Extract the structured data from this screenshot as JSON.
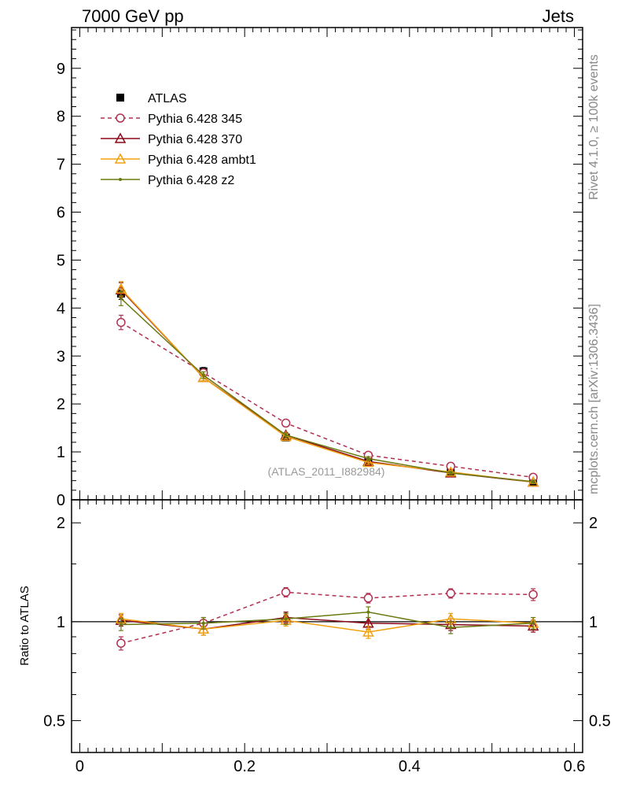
{
  "header": {
    "left": "7000 GeV pp",
    "right": "Jets"
  },
  "side_labels": {
    "rivet": "Rivet 4.1.0, ≥ 100k events",
    "mcplots": "mcplots.cern.ch [arXiv:1306.3436]"
  },
  "watermark": "(ATLAS_2011_I882984)",
  "ratio_ylabel": "Ratio to ATLAS",
  "colors": {
    "ATLAS": "#000000",
    "p345": "#b03050",
    "p370": "#8b0a1a",
    "ambt1": "#f0a010",
    "z2": "#6b7a10"
  },
  "legend": [
    {
      "label": "ATLAS"
    },
    {
      "label": "Pythia 6.428 345"
    },
    {
      "label": "Pythia 6.428 370"
    },
    {
      "label": "Pythia 6.428 ambt1"
    },
    {
      "label": "Pythia 6.428 z2"
    }
  ],
  "chart_data": [
    {
      "type": "line",
      "panel": "main",
      "x": [
        0.05,
        0.15,
        0.25,
        0.35,
        0.45,
        0.55
      ],
      "xlim": [
        -0.01,
        0.61
      ],
      "ylim": [
        0,
        9.85
      ],
      "yticks": [
        "0",
        "1",
        "2",
        "3",
        "4",
        "5",
        "6",
        "7",
        "8",
        "9"
      ],
      "series": [
        {
          "name": "ATLAS",
          "values": [
            4.3,
            2.68,
            1.3,
            0.8,
            0.57,
            0.38
          ],
          "errors": [
            0.12,
            0.08,
            0.05,
            0.04,
            0.03,
            0.03
          ],
          "marker": "square"
        },
        {
          "name": "Pythia 6.428 345",
          "values": [
            3.7,
            2.65,
            1.6,
            0.93,
            0.7,
            0.47
          ],
          "errors": [
            0.15,
            0.07,
            0.05,
            0.04,
            0.03,
            0.03
          ],
          "marker": "circle",
          "dashed": true
        },
        {
          "name": "Pythia 6.428 370",
          "values": [
            4.38,
            2.55,
            1.35,
            0.8,
            0.56,
            0.37
          ],
          "errors": [
            0.15,
            0.07,
            0.05,
            0.04,
            0.03,
            0.03
          ],
          "marker": "triangle"
        },
        {
          "name": "Pythia 6.428 ambt1",
          "values": [
            4.4,
            2.55,
            1.32,
            0.78,
            0.58,
            0.37
          ],
          "errors": [
            0.15,
            0.07,
            0.05,
            0.04,
            0.03,
            0.03
          ],
          "marker": "triangle"
        },
        {
          "name": "Pythia 6.428 z2",
          "values": [
            4.2,
            2.6,
            1.35,
            0.86,
            0.56,
            0.38
          ],
          "errors": [
            0.15,
            0.07,
            0.05,
            0.04,
            0.03,
            0.03
          ],
          "marker": "dot"
        }
      ]
    },
    {
      "type": "line",
      "panel": "ratio",
      "x": [
        0.05,
        0.15,
        0.25,
        0.35,
        0.45,
        0.55
      ],
      "xlim": [
        -0.01,
        0.61
      ],
      "ylim": [
        0.4,
        2.35
      ],
      "ylabel": "Ratio to ATLAS",
      "yticks": [
        "0.5",
        "1",
        "2"
      ],
      "xticks": [
        "0",
        "0.2",
        "0.4",
        "0.6"
      ],
      "series": [
        {
          "name": "Pythia 6.428 345",
          "values": [
            0.86,
            0.99,
            1.23,
            1.18,
            1.22,
            1.21
          ],
          "errors": [
            0.04,
            0.04,
            0.04,
            0.04,
            0.04,
            0.05
          ],
          "marker": "circle",
          "dashed": true
        },
        {
          "name": "Pythia 6.428 370",
          "values": [
            1.01,
            0.95,
            1.03,
            0.99,
            0.98,
            0.97
          ],
          "errors": [
            0.04,
            0.04,
            0.04,
            0.04,
            0.04,
            0.04
          ],
          "marker": "triangle"
        },
        {
          "name": "Pythia 6.428 ambt1",
          "values": [
            1.02,
            0.95,
            1.01,
            0.93,
            1.02,
            0.99
          ],
          "errors": [
            0.04,
            0.04,
            0.04,
            0.04,
            0.04,
            0.04
          ],
          "marker": "triangle"
        },
        {
          "name": "Pythia 6.428 z2",
          "values": [
            0.98,
            0.99,
            1.02,
            1.07,
            0.96,
            0.99
          ],
          "errors": [
            0.04,
            0.04,
            0.04,
            0.04,
            0.04,
            0.04
          ],
          "marker": "dot"
        }
      ]
    }
  ]
}
